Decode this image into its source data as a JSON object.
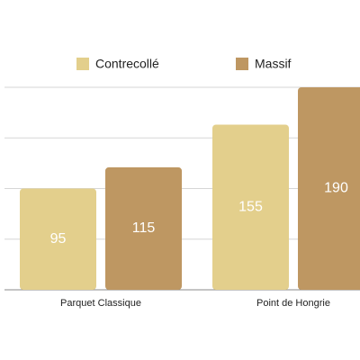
{
  "chart_data": {
    "type": "bar",
    "categories": [
      "Parquet Classique",
      "Point de Hongrie"
    ],
    "series": [
      {
        "name": "Contrecollé",
        "color": "#e3cf8c",
        "values": [
          95,
          155
        ]
      },
      {
        "name": "Massif",
        "color": "#be9762",
        "values": [
          115,
          190
        ]
      }
    ],
    "ylim": [
      0,
      190
    ],
    "yticks": [
      0,
      47.5,
      95,
      142.5,
      190
    ],
    "grid": true
  }
}
